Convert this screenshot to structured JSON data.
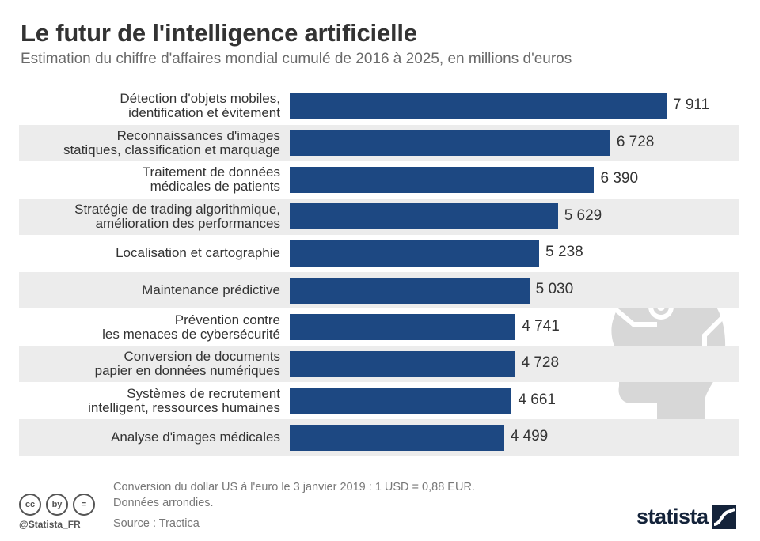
{
  "header": {
    "title": "Le futur de l'intelligence artificielle",
    "subtitle": "Estimation du chiffre d'affaires mondial cumulé de 2016 à 2025, en millions d'euros"
  },
  "chart_data": {
    "type": "bar",
    "orientation": "horizontal",
    "categories": [
      "Détection d'objets mobiles,\nidentification et évitement",
      "Reconnaissances d'images\nstatiques, classification et marquage",
      "Traitement de données\nmédicales de patients",
      "Stratégie de trading algorithmique,\namélioration des performances",
      "Localisation et cartographie",
      "Maintenance prédictive",
      "Prévention contre\nles menaces de cybersécurité",
      "Conversion de documents\npapier en données numériques",
      "Systèmes de recrutement\nintelligent, ressources humaines",
      "Analyse d'images médicales"
    ],
    "values": [
      7911,
      6728,
      6390,
      5629,
      5238,
      5030,
      4741,
      4728,
      4661,
      4499
    ],
    "value_labels": [
      "7 911",
      "6 728",
      "6 390",
      "5 629",
      "5 238",
      "5 030",
      "4 741",
      "4 728",
      "4 661",
      "4 499"
    ],
    "xlim": [
      0,
      7911
    ],
    "grid": false,
    "legend": "none",
    "bar_color": "#1d4882",
    "band_color": "#ececec"
  },
  "footer": {
    "notes": [
      "Conversion du dollar US à l'euro le 3 janvier 2019 : 1 USD = 0,88 EUR.",
      "Données arrondies.",
      "Source : Tractica"
    ],
    "handle": "@Statista_FR",
    "brand": "statista",
    "license_icons": [
      "cc",
      "by",
      "="
    ]
  }
}
